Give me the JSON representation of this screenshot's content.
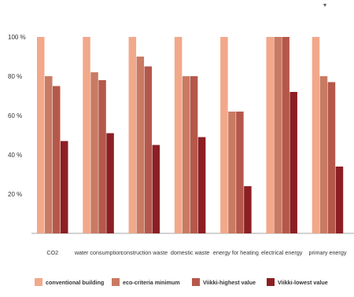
{
  "corner_mark": "▾",
  "chart_data": {
    "type": "bar",
    "title": "",
    "xlabel": "",
    "ylabel": "",
    "ylim": [
      0,
      100
    ],
    "yticks": [
      20,
      40,
      60,
      80,
      100
    ],
    "ytick_labels": [
      "20 %",
      "40 %",
      "60 %",
      "80 %",
      "100 %"
    ],
    "grid": false,
    "legend_position": "bottom",
    "categories": [
      "CO2",
      "water consumption",
      "construction waste",
      "domestic waste",
      "energy for heating",
      "electrical energy",
      "primary energy"
    ],
    "series": [
      {
        "name": "conventional building",
        "color": "#f2a88a",
        "values": [
          100,
          100,
          100,
          100,
          100,
          100,
          100
        ]
      },
      {
        "name": "eco-criteria minimum",
        "color": "#c97a63",
        "values": [
          80,
          82,
          90,
          80,
          62,
          100,
          80
        ]
      },
      {
        "name": "Viikki-highest value",
        "color": "#b5584a",
        "values": [
          75,
          78,
          85,
          80,
          62,
          100,
          77
        ]
      },
      {
        "name": "Viikki-lowest value",
        "color": "#8c1f23",
        "values": [
          47,
          51,
          45,
          49,
          24,
          72,
          34
        ]
      }
    ]
  }
}
